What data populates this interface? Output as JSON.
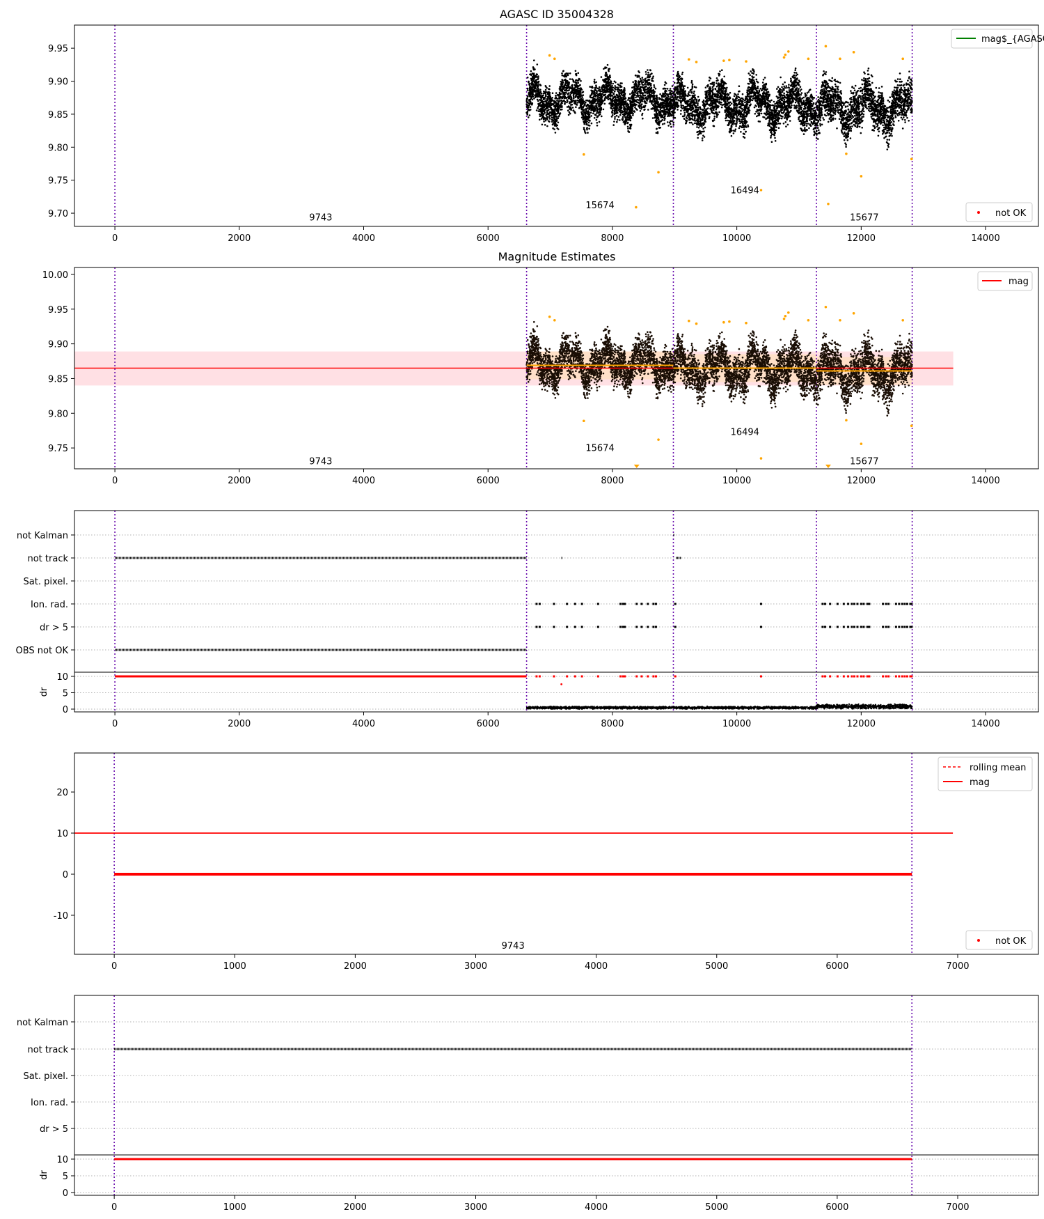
{
  "chart_data": [
    {
      "type": "scatter",
      "title": "AGASC ID 35004328",
      "xlim": [
        -650,
        14850
      ],
      "ylim": [
        9.68,
        9.985
      ],
      "xticks": [
        0,
        2000,
        4000,
        6000,
        8000,
        10000,
        12000,
        14000
      ],
      "yticks": [
        9.7,
        9.75,
        9.8,
        9.85,
        9.9,
        9.95
      ],
      "vlines": [
        0,
        6620,
        8980,
        11280,
        12820
      ],
      "obs_labels": [
        {
          "text": "9743",
          "x": 3310,
          "y": 9.6945
        },
        {
          "text": "15674",
          "x": 7800,
          "y": 9.7125
        },
        {
          "text": "16494",
          "x": 10130,
          "y": 9.7355
        },
        {
          "text": "15677",
          "x": 12050,
          "y": 9.6945
        }
      ],
      "series": [
        {
          "name": "mag$_{AGASC}$",
          "kind": "line",
          "color": "#008000",
          "y": null
        },
        {
          "name": "not OK",
          "kind": "points",
          "color": "#ff0000"
        }
      ],
      "outliers": [
        [
          6990,
          9.939
        ],
        [
          7070,
          9.934
        ],
        [
          7540,
          9.789
        ],
        [
          8380,
          9.709
        ],
        [
          8740,
          9.762
        ],
        [
          9230,
          9.933
        ],
        [
          9350,
          9.929
        ],
        [
          9790,
          9.931
        ],
        [
          9880,
          9.932
        ],
        [
          10150,
          9.93
        ],
        [
          10390,
          9.735
        ],
        [
          10760,
          9.936
        ],
        [
          10780,
          9.94
        ],
        [
          10830,
          9.945
        ],
        [
          11150,
          9.934
        ],
        [
          11430,
          9.953
        ],
        [
          11470,
          9.714
        ],
        [
          11660,
          9.934
        ],
        [
          11760,
          9.79
        ],
        [
          11880,
          9.944
        ],
        [
          12000,
          9.756
        ],
        [
          12670,
          9.934
        ],
        [
          12810,
          9.782
        ]
      ],
      "legend_top": "top-right",
      "legend_bottom": "bottom-right"
    },
    {
      "type": "scatter",
      "title": "Magnitude Estimates",
      "xlim": [
        -650,
        14850
      ],
      "ylim": [
        9.72,
        10.01
      ],
      "xticks": [
        0,
        2000,
        4000,
        6000,
        8000,
        10000,
        12000,
        14000
      ],
      "yticks": [
        9.75,
        9.8,
        9.85,
        9.9,
        9.95,
        10.0
      ],
      "vlines": [
        0,
        6620,
        8980,
        11280,
        12820
      ],
      "mag_line": {
        "name": "mag",
        "y": 9.865,
        "band": [
          9.84,
          9.889
        ],
        "x": [
          -650,
          13480
        ],
        "color": "#ff0000"
      },
      "obs_mag_segments": [
        {
          "x": [
            6620,
            8980
          ],
          "y": 9.869
        },
        {
          "x": [
            8980,
            11280
          ],
          "y": 9.865
        },
        {
          "x": [
            11280,
            12820
          ],
          "y": 9.861
        }
      ],
      "obs_labels": [
        {
          "text": "9743",
          "x": 3310,
          "y": 9.7315
        },
        {
          "text": "15674",
          "x": 7800,
          "y": 9.7505
        },
        {
          "text": "16494",
          "x": 10130,
          "y": 9.7735
        },
        {
          "text": "15677",
          "x": 12050,
          "y": 9.7315
        }
      ],
      "outliers": [
        [
          6990,
          9.939
        ],
        [
          7070,
          9.934
        ],
        [
          7540,
          9.789
        ],
        [
          8740,
          9.762
        ],
        [
          9230,
          9.933
        ],
        [
          9350,
          9.929
        ],
        [
          9790,
          9.931
        ],
        [
          9880,
          9.932
        ],
        [
          10150,
          9.93
        ],
        [
          10390,
          9.735
        ],
        [
          10760,
          9.936
        ],
        [
          10780,
          9.94
        ],
        [
          10830,
          9.945
        ],
        [
          11150,
          9.934
        ],
        [
          11430,
          9.953
        ],
        [
          11660,
          9.934
        ],
        [
          11760,
          9.79
        ],
        [
          11880,
          9.944
        ],
        [
          12000,
          9.756
        ],
        [
          12670,
          9.934
        ],
        [
          12810,
          9.782
        ]
      ],
      "offscale_markers": [
        [
          8390,
          9.722
        ],
        [
          11470,
          9.722
        ]
      ],
      "legend": "top-right"
    },
    {
      "type": "scatter",
      "title": "",
      "xlim": [
        -650,
        14850
      ],
      "flag_rows": [
        "OBS not OK",
        "dr > 5",
        "Ion. rad.",
        "Sat. pixel.",
        "not track",
        "not Kalman"
      ],
      "dr_ylabel": "dr",
      "dr_yticks": [
        0,
        5,
        10
      ],
      "xticks": [
        0,
        2000,
        4000,
        6000,
        8000,
        10000,
        12000,
        14000
      ],
      "vlines": [
        0,
        6620,
        8980,
        11280,
        12820
      ],
      "flag_segments": {
        "not Kalman": [
          [
            8980,
            8990
          ]
        ],
        "not track": [
          [
            0,
            6620
          ],
          [
            7180,
            7190
          ],
          [
            9020,
            9110
          ]
        ],
        "OBS not OK": [
          [
            0,
            6620
          ]
        ]
      },
      "flag_points_ion_dr": [
        6780,
        6830,
        7060,
        7270,
        7400,
        7510,
        7770,
        8130,
        8170,
        8200,
        8390,
        8470,
        8570,
        8660,
        8700,
        9010,
        10390,
        11380,
        11420,
        11500,
        11620,
        11720,
        11790,
        11850,
        11890,
        11940,
        12000,
        12040,
        12100,
        12130,
        12350,
        12400,
        12440,
        12560,
        12610,
        12660,
        12700,
        12740,
        12790,
        12810
      ],
      "dr_extra_red": [
        [
          7180,
          7.6
        ]
      ]
    },
    {
      "type": "scatter",
      "title": "",
      "xlim": [
        -330,
        7670
      ],
      "ylim": [
        -19.5,
        29.5
      ],
      "xticks": [
        0,
        1000,
        2000,
        3000,
        4000,
        5000,
        6000,
        7000
      ],
      "yticks": [
        -10,
        0,
        10,
        20
      ],
      "vlines": [
        0,
        6620
      ],
      "mag_line": {
        "y": 10,
        "x": [
          -330,
          6960
        ]
      },
      "zero_points": {
        "x": [
          0,
          6620
        ],
        "y": 0
      },
      "obs_labels": [
        {
          "text": "9743",
          "x": 3310,
          "y": -17.3
        }
      ],
      "series": [
        {
          "name": "rolling mean",
          "kind": "dashed-line",
          "color": "#ff0000"
        },
        {
          "name": "mag",
          "kind": "line",
          "color": "#ff0000"
        },
        {
          "name": "not OK",
          "kind": "points",
          "color": "#ff0000"
        }
      ],
      "legend_top": "top-right",
      "legend_bottom": "bottom-right"
    },
    {
      "type": "scatter",
      "title": "",
      "xlim": [
        -330,
        7670
      ],
      "flag_rows": [
        "dr > 5",
        "Ion. rad.",
        "Sat. pixel.",
        "not track",
        "not Kalman"
      ],
      "dr_ylabel": "dr",
      "dr_yticks": [
        0,
        5,
        10
      ],
      "xticks": [
        0,
        1000,
        2000,
        3000,
        4000,
        5000,
        6000,
        7000
      ],
      "vlines": [
        0,
        6620
      ],
      "flag_segments": {
        "not track": [
          [
            0,
            6620
          ]
        ]
      },
      "dr_red_line": [
        [
          0,
          6620
        ],
        10
      ]
    }
  ]
}
